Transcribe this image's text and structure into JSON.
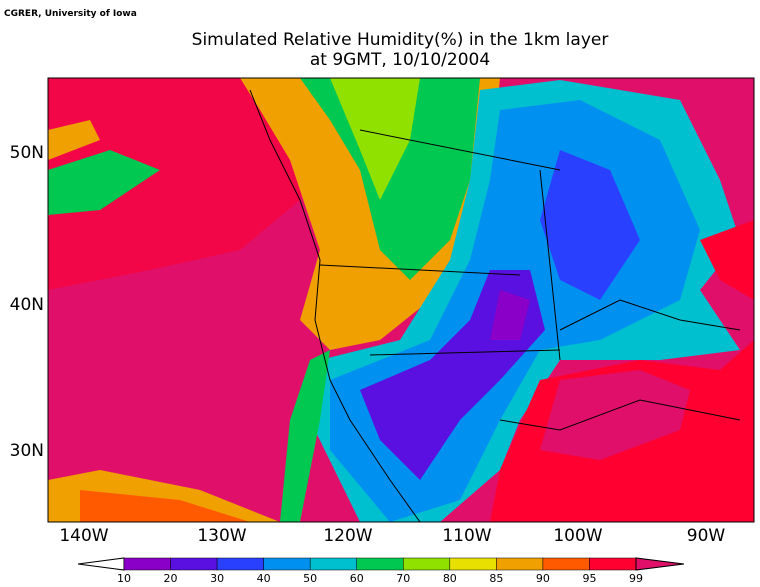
{
  "credit": "CGRER, University of Iowa",
  "title": [
    "Simulated Relative Humidity(%) in the 1km layer",
    "at 9GMT, 10/10/2004"
  ],
  "lat_labels": [
    "50N",
    "40N",
    "30N"
  ],
  "lon_labels": [
    "140W",
    "130W",
    "120W",
    "110W",
    "100W",
    "90W"
  ],
  "colorbar": {
    "levels": [
      10,
      20,
      30,
      40,
      50,
      60,
      70,
      80,
      85,
      90,
      95,
      99
    ],
    "colors": [
      "#8a00c8",
      "#5a10e0",
      "#2a40ff",
      "#0090f0",
      "#00c0d0",
      "#00c850",
      "#90e000",
      "#e8e000",
      "#f0a000",
      "#ff5a00",
      "#ff0030"
    ],
    "under_color": "#ffffff",
    "over_color": "#e0106a"
  }
}
